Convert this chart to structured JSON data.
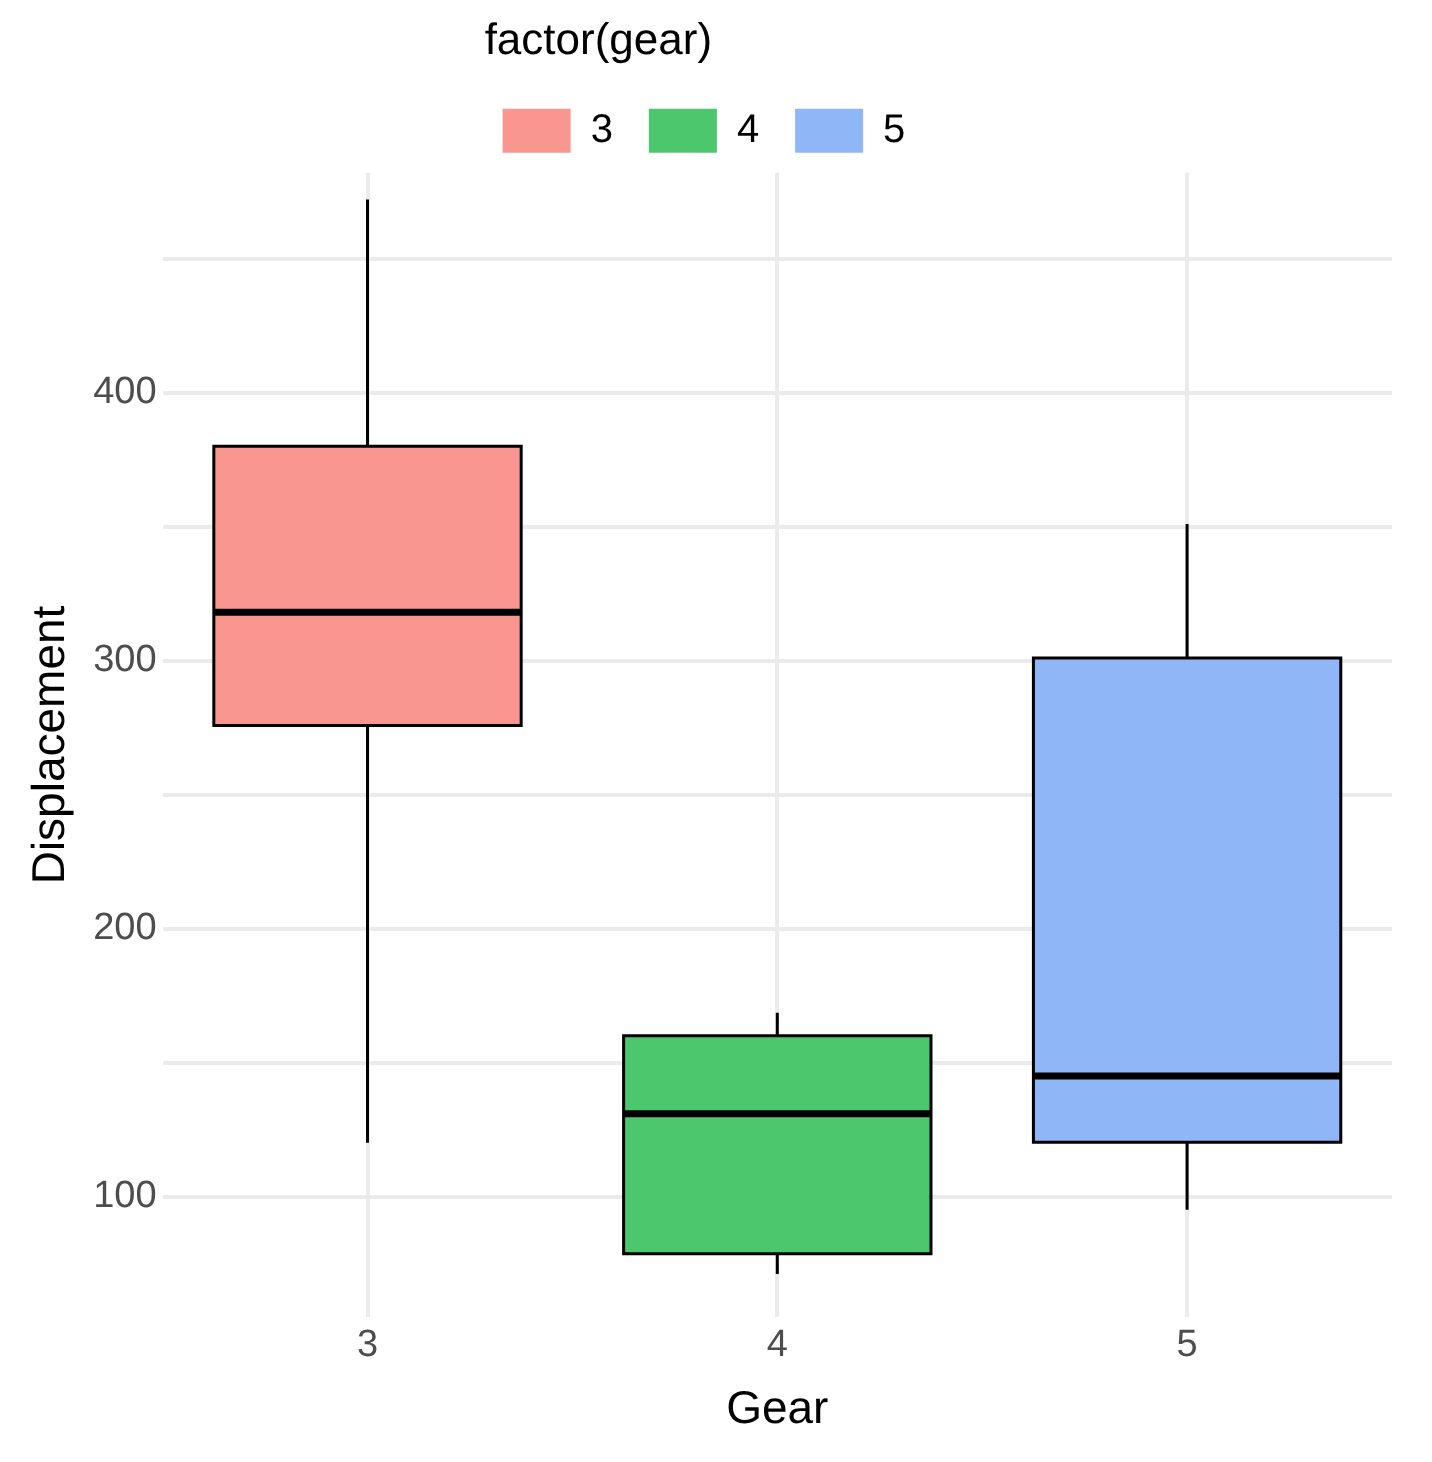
{
  "chart_data": {
    "type": "box",
    "xlabel": "Gear",
    "ylabel": "Displacement",
    "legend_title": "factor(gear)",
    "legend": "top",
    "categories": [
      "3",
      "4",
      "5"
    ],
    "series": [
      {
        "name": "3",
        "color": "#f8968f",
        "boxes": [
          {
            "low": 120.1,
            "q1": 275.8,
            "median": 318,
            "q3": 380,
            "high": 472
          },
          null,
          null
        ]
      },
      {
        "name": "4",
        "color": "#4cc76d",
        "boxes": [
          null,
          {
            "low": 71.1,
            "q1": 78.7,
            "median": 130.9,
            "q3": 160,
            "high": 168.6
          },
          null
        ]
      },
      {
        "name": "5",
        "color": "#8fb6f7",
        "boxes": [
          null,
          null,
          {
            "low": 95.1,
            "q1": 120.3,
            "median": 145,
            "q3": 301,
            "high": 351
          }
        ]
      }
    ],
    "ylim": [
      55,
      482
    ],
    "yticks": [
      100,
      {
        "value": 150,
        "label": null
      },
      200,
      {
        "value": 250,
        "label": null
      },
      300,
      {
        "value": 350,
        "label": null
      },
      400,
      {
        "value": 450,
        "label": null
      }
    ],
    "grid": true
  }
}
